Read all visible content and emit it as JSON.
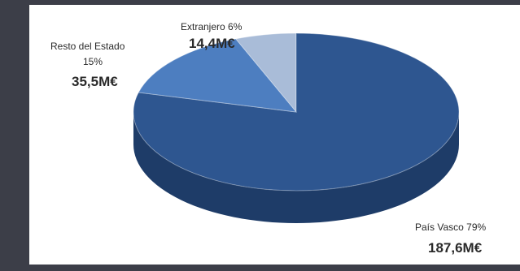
{
  "chart_data": {
    "type": "pie",
    "categories": [
      "País Vasco",
      "Resto del Estado",
      "Extranjero"
    ],
    "values": [
      187.6,
      35.5,
      14.4
    ],
    "percent_labels": [
      "País Vasco 79%",
      "15%",
      "Extranjero 6%"
    ],
    "value_labels": [
      "187,6M€",
      "35,5M€",
      "14,4M€"
    ],
    "category_label_resto": "Resto del Estado",
    "colors": [
      "#2e5690",
      "#4d7ec0",
      "#a9bcd8"
    ],
    "side_colors": [
      "#1e3c68",
      "#35609a",
      "#8a9fbf"
    ],
    "style": "3d-tilted"
  }
}
